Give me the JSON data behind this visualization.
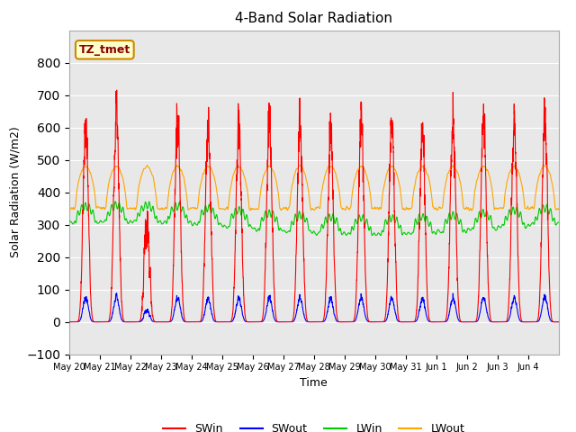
{
  "title": "4-Band Solar Radiation",
  "xlabel": "Time",
  "ylabel": "Solar Radiation (W/m2)",
  "annotation": "TZ_tmet",
  "ylim": [
    -100,
    900
  ],
  "yticks": [
    -100,
    0,
    100,
    200,
    300,
    400,
    500,
    600,
    700,
    800
  ],
  "legend": [
    "SWin",
    "SWout",
    "LWin",
    "LWout"
  ],
  "colors": {
    "SWin": "#FF0000",
    "SWout": "#0000FF",
    "LWin": "#00CC00",
    "LWout": "#FFA500"
  },
  "background_color": "#FFFFFF",
  "plot_bg_color": "#E8E8E8",
  "grid_color": "#FFFFFF",
  "n_days": 16,
  "points_per_day": 288,
  "day_labels": [
    "May 20",
    "May 21",
    "May 22",
    "May 23",
    "May 24",
    "May 25",
    "May 26",
    "May 27",
    "May 28",
    "May 29",
    "May 30",
    "May 31",
    "Jun 1",
    "Jun 2",
    "Jun 3",
    "Jun 4"
  ]
}
